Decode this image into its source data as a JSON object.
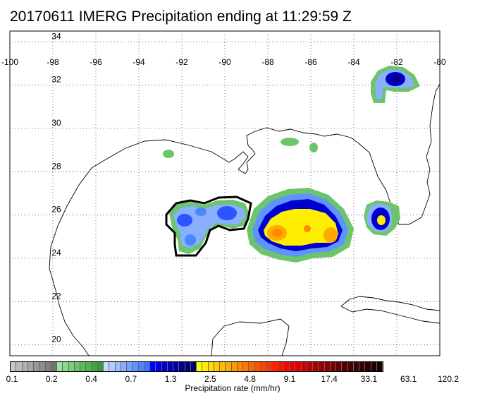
{
  "title": "20170611 IMERG Precipitation ending at 11:29:59 Z",
  "map": {
    "lon_labels": [
      "-100",
      "-98",
      "-96",
      "-94",
      "-92",
      "-90",
      "-88",
      "-86",
      "-84",
      "-82",
      "-80"
    ],
    "lat_labels": [
      "34",
      "32",
      "30",
      "28",
      "26",
      "24",
      "22",
      "20"
    ],
    "lon_range": [
      -100,
      -80
    ],
    "lat_range": [
      19.5,
      34.5
    ],
    "gridlines": "dotted"
  },
  "colorbar": {
    "title": "Precipitation rate (mm/hr)",
    "tick_labels": [
      "0.1",
      "0.2",
      "0.4",
      "0.7",
      "1.3",
      "2.5",
      "4.8",
      "9.1",
      "17.4",
      "33.1",
      "63.1",
      "120.2"
    ],
    "colors": [
      "#c8c8c8",
      "#bcbcbc",
      "#b0b0b0",
      "#a4a4a4",
      "#989898",
      "#8c8c8c",
      "#808080",
      "#747474",
      "#9be29b",
      "#8cd98c",
      "#7ccf7c",
      "#6cc56c",
      "#5dbb5d",
      "#4fb14f",
      "#41a741",
      "#339d33",
      "#c9d9ff",
      "#b4cbff",
      "#9fbdff",
      "#8aafff",
      "#75a1ff",
      "#6093ff",
      "#4b85ff",
      "#3677ff",
      "#0000ff",
      "#0000e8",
      "#0000d1",
      "#0000ba",
      "#0000a3",
      "#00008c",
      "#000075",
      "#00005e",
      "#ffff00",
      "#ffee00",
      "#ffdd00",
      "#ffcc00",
      "#ffbb00",
      "#ffaa00",
      "#ff9900",
      "#ff8800",
      "#ff7700",
      "#ff6600",
      "#ff5500",
      "#ff4400",
      "#ff3300",
      "#ff2200",
      "#ff1100",
      "#ff0000",
      "#ee0000",
      "#dd0000",
      "#cc0000",
      "#bb0000",
      "#aa0000",
      "#990000",
      "#880000",
      "#770000",
      "#660000",
      "#550000",
      "#4a0000",
      "#3f0000",
      "#340000",
      "#290000",
      "#1e0000",
      "#130000"
    ]
  }
}
